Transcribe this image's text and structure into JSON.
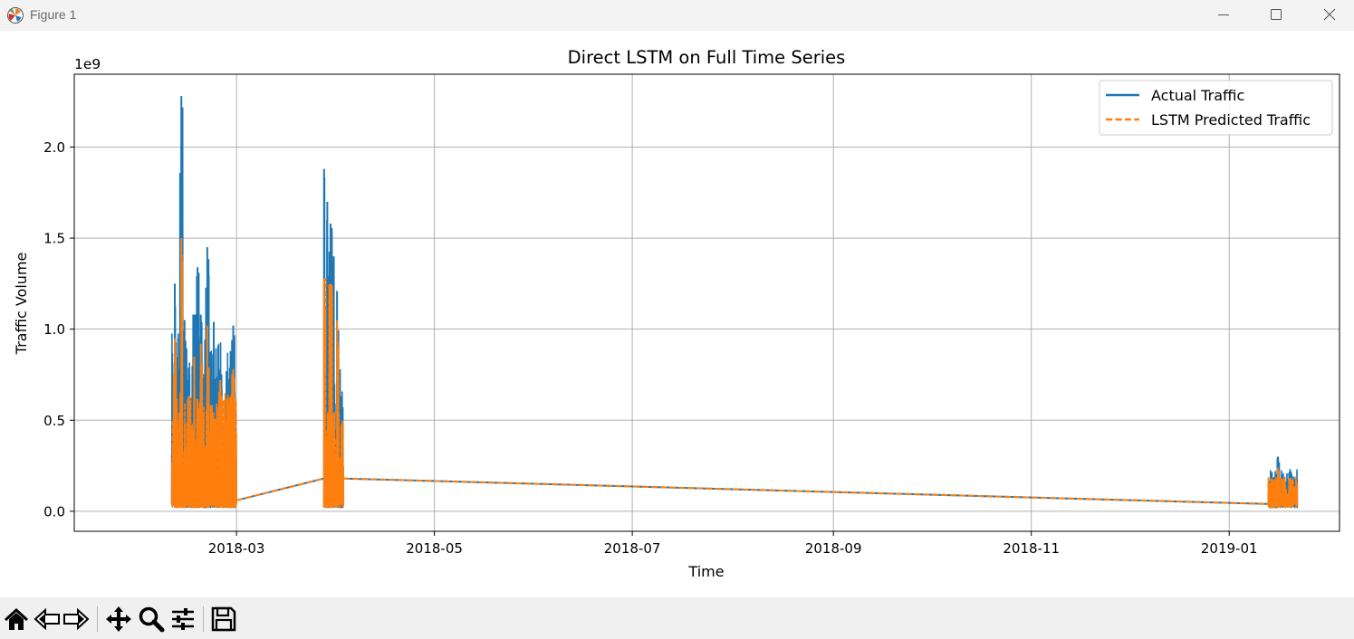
{
  "window": {
    "title": "Figure 1",
    "icons": {
      "app": "matplotlib-logo-icon",
      "minimize": "minimize-icon",
      "maximize": "maximize-icon",
      "close": "close-icon"
    }
  },
  "toolbar": {
    "buttons": [
      {
        "name": "home",
        "icon": "home-icon"
      },
      {
        "name": "back",
        "icon": "back-arrow-icon"
      },
      {
        "name": "forward",
        "icon": "forward-arrow-icon"
      },
      {
        "name": "pan",
        "icon": "move-icon"
      },
      {
        "name": "zoom",
        "icon": "magnifier-icon"
      },
      {
        "name": "configure",
        "icon": "sliders-icon"
      },
      {
        "name": "save",
        "icon": "floppy-disk-icon"
      }
    ]
  },
  "chart_data": {
    "type": "line",
    "title": "Direct LSTM on Full Time Series",
    "xlabel": "Time",
    "ylabel": "Traffic Volume",
    "y_offset_label": "1e9",
    "xlim": [
      "2018-01-10",
      "2019-02-04"
    ],
    "ylim": [
      -0.11,
      2.4
    ],
    "y_ticks": [
      0.0,
      0.5,
      1.0,
      1.5,
      2.0
    ],
    "y_tick_labels": [
      "0.0",
      "0.5",
      "1.0",
      "1.5",
      "2.0"
    ],
    "x_ticks": [
      "2018-03-01",
      "2018-05-01",
      "2018-07-01",
      "2018-09-01",
      "2018-11-01",
      "2019-01-01"
    ],
    "x_tick_labels": [
      "2018-03",
      "2018-05",
      "2018-07",
      "2018-09",
      "2018-11",
      "2019-01"
    ],
    "grid": true,
    "legend_position": "top-right",
    "series": [
      {
        "name": "Actual Traffic",
        "color": "#1f77b4",
        "style": "solid",
        "segments": [
          {
            "start": "2018-02-09",
            "end": "2018-03-01",
            "envelope_low": 0.02,
            "max": 2.28,
            "peaks": [
              [
                "2018-02-10",
                1.25
              ],
              [
                "2018-02-11",
                0.95
              ],
              [
                "2018-02-12",
                2.28
              ],
              [
                "2018-02-13",
                1.05
              ],
              [
                "2018-02-16",
                1.08
              ],
              [
                "2018-02-17",
                1.34
              ],
              [
                "2018-02-18",
                1.08
              ],
              [
                "2018-02-20",
                1.45
              ],
              [
                "2018-02-22",
                1.04
              ],
              [
                "2018-02-24",
                0.75
              ],
              [
                "2018-02-26",
                0.62
              ],
              [
                "2018-02-28",
                1.02
              ]
            ]
          },
          {
            "start": "2018-03-28",
            "end": "2018-04-03",
            "envelope_low": 0.02,
            "max": 1.88,
            "peaks": [
              [
                "2018-03-28",
                1.88
              ],
              [
                "2018-03-29",
                1.7
              ],
              [
                "2018-03-30",
                1.58
              ],
              [
                "2018-03-31",
                1.4
              ],
              [
                "2018-04-01",
                1.21
              ]
            ]
          },
          {
            "start": "2019-01-13",
            "end": "2019-01-22",
            "envelope_low": 0.02,
            "max": 0.3,
            "peaks": [
              [
                "2019-01-14",
                0.21
              ],
              [
                "2019-01-16",
                0.3
              ],
              [
                "2019-01-20",
                0.22
              ]
            ]
          }
        ],
        "connectors": [
          {
            "x": [
              "2018-03-01",
              "2018-03-28"
            ],
            "y": [
              0.06,
              0.18
            ]
          },
          {
            "x": [
              "2018-04-03",
              "2019-01-13"
            ],
            "y": [
              0.18,
              0.04
            ]
          }
        ]
      },
      {
        "name": "LSTM Predicted Traffic",
        "color": "#ff7f0e",
        "style": "dashed",
        "segments": [
          {
            "start": "2018-02-09",
            "end": "2018-03-01",
            "envelope_low": 0.02,
            "max": 1.5,
            "peaks": [
              [
                "2018-02-10",
                0.95
              ],
              [
                "2018-02-12",
                1.5
              ],
              [
                "2018-02-16",
                0.85
              ],
              [
                "2018-02-18",
                0.92
              ],
              [
                "2018-02-20",
                1.02
              ],
              [
                "2018-02-24",
                0.72
              ],
              [
                "2018-02-28",
                0.78
              ]
            ]
          },
          {
            "start": "2018-03-28",
            "end": "2018-04-03",
            "envelope_low": 0.02,
            "max": 1.28,
            "peaks": [
              [
                "2018-03-28",
                1.28
              ],
              [
                "2018-03-30",
                1.25
              ],
              [
                "2018-04-01",
                1.05
              ]
            ]
          },
          {
            "start": "2019-01-13",
            "end": "2019-01-22",
            "envelope_low": 0.02,
            "max": 0.24,
            "peaks": [
              [
                "2019-01-14",
                0.18
              ],
              [
                "2019-01-16",
                0.24
              ],
              [
                "2019-01-20",
                0.18
              ]
            ]
          }
        ],
        "connectors": [
          {
            "x": [
              "2018-03-01",
              "2018-03-28"
            ],
            "y": [
              0.06,
              0.18
            ]
          },
          {
            "x": [
              "2018-04-03",
              "2019-01-13"
            ],
            "y": [
              0.18,
              0.04
            ]
          }
        ]
      }
    ]
  }
}
